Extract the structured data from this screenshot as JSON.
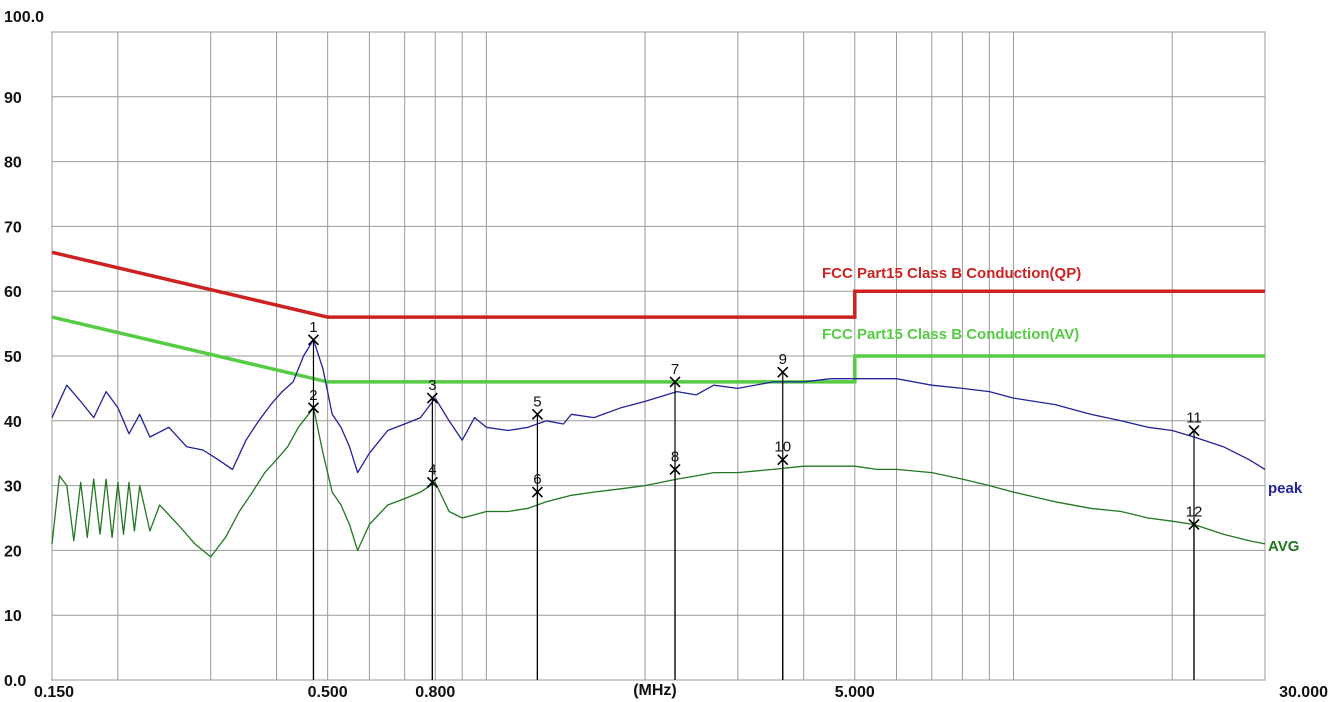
{
  "chart_data": {
    "type": "line",
    "title": "",
    "xlabel": "(MHz)",
    "ylabel": "",
    "x_scale": "log",
    "xlim": [
      0.15,
      30.0
    ],
    "ylim": [
      0.0,
      100.0
    ],
    "grid": true,
    "y_ticks": [
      {
        "value": 0,
        "label": "0.0"
      },
      {
        "value": 10,
        "label": "10"
      },
      {
        "value": 20,
        "label": "20"
      },
      {
        "value": 30,
        "label": "30"
      },
      {
        "value": 40,
        "label": "40"
      },
      {
        "value": 50,
        "label": "50"
      },
      {
        "value": 60,
        "label": "60"
      },
      {
        "value": 70,
        "label": "70"
      },
      {
        "value": 80,
        "label": "80"
      },
      {
        "value": 90,
        "label": "90"
      },
      {
        "value": 100,
        "label": "100.0"
      }
    ],
    "x_tick_labels": [
      {
        "value": 0.15,
        "label": "0.150"
      },
      {
        "value": 0.5,
        "label": "0.500"
      },
      {
        "value": 0.8,
        "label": "0.800"
      },
      {
        "value": 5.0,
        "label": "5.000"
      },
      {
        "value": 30.0,
        "label": "30.000"
      }
    ],
    "x_gridlines": [
      0.15,
      0.2,
      0.3,
      0.4,
      0.5,
      0.6,
      0.7,
      0.8,
      0.9,
      1,
      2,
      3,
      4,
      5,
      6,
      7,
      8,
      9,
      10,
      20,
      30
    ],
    "limit_lines": [
      {
        "name": "FCC Part15 Class B Conduction(QP)",
        "color": "#cc2222",
        "points": [
          [
            0.15,
            66.0
          ],
          [
            0.5,
            56.0
          ],
          [
            5.0,
            56.0
          ],
          [
            5.0,
            60.0
          ],
          [
            30.0,
            60.0
          ]
        ]
      },
      {
        "name": "FCC Part15 Class B Conduction(AV)",
        "color": "#55cc44",
        "points": [
          [
            0.15,
            56.0
          ],
          [
            0.5,
            46.0
          ],
          [
            5.0,
            46.0
          ],
          [
            5.0,
            50.0
          ],
          [
            30.0,
            50.0
          ]
        ]
      }
    ],
    "series": [
      {
        "name": "peak",
        "color": "#22229a",
        "points": [
          [
            0.15,
            40.5
          ],
          [
            0.16,
            45.5
          ],
          [
            0.17,
            43
          ],
          [
            0.18,
            40.5
          ],
          [
            0.19,
            44.5
          ],
          [
            0.2,
            42
          ],
          [
            0.21,
            38
          ],
          [
            0.22,
            41
          ],
          [
            0.23,
            37.5
          ],
          [
            0.25,
            39
          ],
          [
            0.27,
            36
          ],
          [
            0.29,
            35.5
          ],
          [
            0.31,
            34
          ],
          [
            0.33,
            32.5
          ],
          [
            0.35,
            37
          ],
          [
            0.37,
            40
          ],
          [
            0.39,
            42.5
          ],
          [
            0.41,
            44.5
          ],
          [
            0.43,
            46
          ],
          [
            0.45,
            50
          ],
          [
            0.47,
            52.5
          ],
          [
            0.49,
            48
          ],
          [
            0.51,
            41
          ],
          [
            0.53,
            39
          ],
          [
            0.55,
            36
          ],
          [
            0.57,
            32
          ],
          [
            0.6,
            35
          ],
          [
            0.65,
            38.5
          ],
          [
            0.7,
            39.5
          ],
          [
            0.75,
            40.5
          ],
          [
            0.8,
            43.5
          ],
          [
            0.85,
            40
          ],
          [
            0.9,
            37
          ],
          [
            0.95,
            40.5
          ],
          [
            1.0,
            39
          ],
          [
            1.1,
            38.5
          ],
          [
            1.2,
            39
          ],
          [
            1.3,
            40
          ],
          [
            1.4,
            39.5
          ],
          [
            1.45,
            41
          ],
          [
            1.6,
            40.5
          ],
          [
            1.8,
            42
          ],
          [
            2.0,
            43
          ],
          [
            2.3,
            44.5
          ],
          [
            2.5,
            44
          ],
          [
            2.7,
            45.5
          ],
          [
            3.0,
            45
          ],
          [
            3.5,
            46
          ],
          [
            4.0,
            46
          ],
          [
            4.5,
            46.5
          ],
          [
            5.0,
            46.5
          ],
          [
            5.5,
            46.5
          ],
          [
            6.0,
            46.5
          ],
          [
            7.0,
            45.5
          ],
          [
            8.0,
            45
          ],
          [
            9.0,
            44.5
          ],
          [
            10.0,
            43.5
          ],
          [
            12.0,
            42.5
          ],
          [
            14.0,
            41
          ],
          [
            16.0,
            40
          ],
          [
            18.0,
            39
          ],
          [
            20.0,
            38.5
          ],
          [
            22.0,
            37.5
          ],
          [
            25.0,
            36
          ],
          [
            28.0,
            34
          ],
          [
            30.0,
            32.5
          ]
        ]
      },
      {
        "name": "AVG",
        "color": "#227722",
        "points": [
          [
            0.15,
            21
          ],
          [
            0.155,
            31.5
          ],
          [
            0.16,
            30
          ],
          [
            0.165,
            21.5
          ],
          [
            0.17,
            30.5
          ],
          [
            0.175,
            22
          ],
          [
            0.18,
            31
          ],
          [
            0.185,
            22.5
          ],
          [
            0.19,
            31
          ],
          [
            0.195,
            22
          ],
          [
            0.2,
            30.5
          ],
          [
            0.205,
            22.5
          ],
          [
            0.21,
            30.5
          ],
          [
            0.215,
            23
          ],
          [
            0.22,
            30
          ],
          [
            0.23,
            23
          ],
          [
            0.24,
            27
          ],
          [
            0.26,
            24
          ],
          [
            0.28,
            21
          ],
          [
            0.3,
            19
          ],
          [
            0.32,
            22
          ],
          [
            0.34,
            26
          ],
          [
            0.36,
            29
          ],
          [
            0.38,
            32
          ],
          [
            0.4,
            34
          ],
          [
            0.42,
            36
          ],
          [
            0.44,
            39
          ],
          [
            0.47,
            42
          ],
          [
            0.49,
            35
          ],
          [
            0.51,
            29
          ],
          [
            0.53,
            27
          ],
          [
            0.55,
            24
          ],
          [
            0.57,
            20
          ],
          [
            0.6,
            24
          ],
          [
            0.65,
            27
          ],
          [
            0.7,
            28
          ],
          [
            0.75,
            29
          ],
          [
            0.8,
            30.5
          ],
          [
            0.85,
            26
          ],
          [
            0.9,
            25
          ],
          [
            0.95,
            25.5
          ],
          [
            1.0,
            26
          ],
          [
            1.1,
            26
          ],
          [
            1.2,
            26.5
          ],
          [
            1.3,
            27.5
          ],
          [
            1.45,
            28.5
          ],
          [
            1.6,
            29
          ],
          [
            1.8,
            29.5
          ],
          [
            2.0,
            30
          ],
          [
            2.3,
            31
          ],
          [
            2.5,
            31.5
          ],
          [
            2.7,
            32
          ],
          [
            3.0,
            32
          ],
          [
            3.5,
            32.5
          ],
          [
            4.0,
            33
          ],
          [
            4.5,
            33
          ],
          [
            5.0,
            33
          ],
          [
            5.5,
            32.5
          ],
          [
            6.0,
            32.5
          ],
          [
            7.0,
            32
          ],
          [
            8.0,
            31
          ],
          [
            9.0,
            30
          ],
          [
            10.0,
            29
          ],
          [
            12.0,
            27.5
          ],
          [
            14.0,
            26.5
          ],
          [
            16.0,
            26
          ],
          [
            18.0,
            25
          ],
          [
            20.0,
            24.5
          ],
          [
            22.0,
            24
          ],
          [
            25.0,
            22.5
          ],
          [
            28.0,
            21.5
          ],
          [
            30.0,
            21
          ]
        ]
      }
    ],
    "markers": [
      {
        "label": "1",
        "x": 0.47,
        "y": 52.5
      },
      {
        "label": "2",
        "x": 0.47,
        "y": 42.0
      },
      {
        "label": "3",
        "x": 0.79,
        "y": 43.5
      },
      {
        "label": "4",
        "x": 0.79,
        "y": 30.5
      },
      {
        "label": "5",
        "x": 1.25,
        "y": 41.0
      },
      {
        "label": "6",
        "x": 1.25,
        "y": 29.0
      },
      {
        "label": "7",
        "x": 2.28,
        "y": 46.0
      },
      {
        "label": "8",
        "x": 2.28,
        "y": 32.5
      },
      {
        "label": "9",
        "x": 3.65,
        "y": 47.5
      },
      {
        "label": "10",
        "x": 3.65,
        "y": 34.0
      },
      {
        "label": "11",
        "x": 22.0,
        "y": 38.5
      },
      {
        "label": "12",
        "x": 22.0,
        "y": 24.0
      }
    ]
  }
}
